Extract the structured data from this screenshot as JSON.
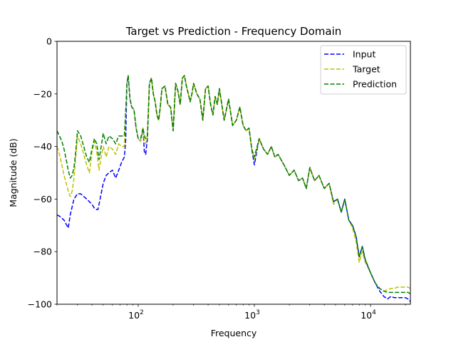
{
  "chart_data": {
    "type": "line",
    "title": "Target vs Prediction - Frequency Domain",
    "xlabel": "Frequency",
    "ylabel": "Magnitude (dB)",
    "xscale": "log",
    "xlim": [
      20,
      22050
    ],
    "ylim": [
      -100,
      0
    ],
    "grid": false,
    "legend_position": "top-right",
    "x_ticks": [
      {
        "value": 100,
        "label": "10",
        "exp": "2"
      },
      {
        "value": 1000,
        "label": "10",
        "exp": "3"
      },
      {
        "value": 10000,
        "label": "10",
        "exp": "4"
      }
    ],
    "y_ticks": [
      {
        "value": 0,
        "label": "0"
      },
      {
        "value": -20,
        "label": "−20"
      },
      {
        "value": -40,
        "label": "−40"
      },
      {
        "value": -60,
        "label": "−60"
      },
      {
        "value": -80,
        "label": "−80"
      },
      {
        "value": -100,
        "label": "−100"
      }
    ],
    "series": [
      {
        "name": "Input",
        "color": "#0000ff",
        "style": "dashed",
        "x": [
          20,
          21,
          23,
          25,
          26,
          28,
          30,
          32,
          34,
          36,
          38,
          40,
          42,
          44,
          45,
          47,
          50,
          53,
          56,
          60,
          64,
          68,
          72,
          76,
          78,
          80,
          82,
          85,
          88,
          92,
          96,
          100,
          105,
          110,
          113,
          116,
          120,
          125,
          130,
          135,
          140,
          145,
          150,
          155,
          160,
          170,
          180,
          190,
          200,
          210,
          220,
          230,
          240,
          250,
          260,
          270,
          280,
          290,
          300,
          320,
          340,
          360,
          380,
          400,
          420,
          440,
          460,
          480,
          500,
          550,
          600,
          650,
          700,
          750,
          800,
          850,
          900,
          950,
          1000,
          1100,
          1200,
          1300,
          1400,
          1500,
          1600,
          1800,
          2000,
          2200,
          2400,
          2600,
          2800,
          3000,
          3300,
          3600,
          4000,
          4400,
          4800,
          5200,
          5600,
          6000,
          6500,
          7000,
          7500,
          8000,
          8500,
          9000,
          10000,
          11000,
          12000,
          13000,
          14000,
          15000,
          16000,
          17000,
          18000,
          19000,
          20000,
          21000,
          22050
        ],
        "y": [
          -66,
          -66.5,
          -68,
          -71,
          -66,
          -60,
          -58,
          -58,
          -59,
          -60,
          -61,
          -62,
          -63.5,
          -64,
          -64,
          -60,
          -54,
          -51,
          -50,
          -49,
          -52,
          -49,
          -46,
          -44,
          -38,
          -16,
          -13,
          -22,
          -25,
          -26,
          -33,
          -37,
          -38,
          -33,
          -42,
          -43,
          -37,
          -16,
          -14,
          -20,
          -23,
          -28,
          -30,
          -25,
          -18,
          -17,
          -24,
          -25,
          -34,
          -16,
          -19,
          -24,
          -14,
          -13,
          -17,
          -20,
          -23,
          -20,
          -16,
          -20,
          -22,
          -30,
          -18,
          -17,
          -24,
          -28,
          -21,
          -24,
          -18,
          -30,
          -22,
          -32,
          -30,
          -25,
          -32,
          -34,
          -33,
          -41,
          -47,
          -37,
          -41,
          -43,
          -40,
          -44,
          -43,
          -47,
          -51,
          -49,
          -53,
          -52,
          -56,
          -48,
          -53,
          -51,
          -56,
          -54,
          -61,
          -60,
          -65,
          -60,
          -68,
          -70,
          -74,
          -82,
          -78,
          -83,
          -88,
          -92,
          -95,
          -97,
          -98,
          -97,
          -97.5,
          -97.5,
          -97.5,
          -97.5,
          -97.5,
          -98,
          -99
        ]
      },
      {
        "name": "Target",
        "color": "#bfbf00",
        "style": "dashed",
        "x": [
          20,
          21,
          22,
          23,
          24,
          25,
          26,
          27,
          28,
          29,
          30,
          32,
          34,
          36,
          38,
          40,
          42,
          44,
          46,
          48,
          50,
          53,
          56,
          60,
          64,
          68,
          72,
          76,
          78,
          80,
          82,
          85,
          88,
          92,
          96,
          100,
          105,
          110,
          113,
          116,
          120,
          125,
          130,
          135,
          140,
          145,
          150,
          155,
          160,
          170,
          180,
          190,
          200,
          210,
          220,
          230,
          240,
          250,
          260,
          270,
          280,
          290,
          300,
          320,
          340,
          360,
          380,
          400,
          420,
          440,
          460,
          480,
          500,
          550,
          600,
          650,
          700,
          750,
          800,
          850,
          900,
          950,
          1000,
          1100,
          1200,
          1300,
          1400,
          1500,
          1600,
          1800,
          2000,
          2200,
          2400,
          2600,
          2800,
          3000,
          3300,
          3600,
          4000,
          4400,
          4800,
          5200,
          5600,
          6000,
          6500,
          7000,
          7500,
          8000,
          8500,
          9000,
          10000,
          11000,
          12000,
          13000,
          14000,
          15000,
          16000,
          17000,
          18000,
          19000,
          20000,
          21000,
          22050
        ],
        "y": [
          -40,
          -43,
          -47,
          -51,
          -54,
          -57,
          -59,
          -57,
          -52,
          -44,
          -36,
          -39,
          -43,
          -47,
          -50,
          -42,
          -38,
          -42,
          -49,
          -44,
          -40,
          -44,
          -40,
          -41,
          -43,
          -39,
          -40,
          -40,
          -28,
          -16,
          -13,
          -22,
          -25,
          -26,
          -33,
          -37,
          -38,
          -33,
          -38,
          -39,
          -36,
          -16,
          -14,
          -20,
          -23,
          -28,
          -30,
          -25,
          -18,
          -17,
          -24,
          -25,
          -34,
          -16,
          -19,
          -24,
          -14,
          -13,
          -17,
          -20,
          -23,
          -20,
          -16,
          -20,
          -22,
          -30,
          -18,
          -17,
          -24,
          -28,
          -21,
          -24,
          -18,
          -30,
          -22,
          -32,
          -30,
          -25,
          -32,
          -34,
          -33,
          -41,
          -45,
          -37,
          -41,
          -43,
          -40,
          -44,
          -43,
          -47,
          -51,
          -49,
          -53,
          -52,
          -56,
          -48,
          -53,
          -51,
          -56,
          -54,
          -62,
          -60,
          -65,
          -60,
          -68,
          -71,
          -76,
          -84,
          -80,
          -84,
          -88,
          -92,
          -94,
          -95,
          -94.5,
          -94,
          -94,
          -93.5,
          -93.5,
          -93.5,
          -93.5,
          -93.5,
          -94
        ]
      },
      {
        "name": "Prediction",
        "color": "#008000",
        "style": "dashed",
        "x": [
          20,
          21,
          22,
          23,
          24,
          25,
          26,
          27,
          28,
          29,
          30,
          32,
          34,
          36,
          38,
          40,
          42,
          44,
          46,
          48,
          50,
          53,
          56,
          60,
          64,
          68,
          72,
          76,
          78,
          80,
          82,
          85,
          88,
          92,
          96,
          100,
          105,
          110,
          113,
          116,
          120,
          125,
          130,
          135,
          140,
          145,
          150,
          155,
          160,
          170,
          180,
          190,
          200,
          210,
          220,
          230,
          240,
          250,
          260,
          270,
          280,
          290,
          300,
          320,
          340,
          360,
          380,
          400,
          420,
          440,
          460,
          480,
          500,
          550,
          600,
          650,
          700,
          750,
          800,
          850,
          900,
          950,
          1000,
          1100,
          1200,
          1300,
          1400,
          1500,
          1600,
          1800,
          2000,
          2200,
          2400,
          2600,
          2800,
          3000,
          3300,
          3600,
          4000,
          4400,
          4800,
          5200,
          5600,
          6000,
          6500,
          7000,
          7500,
          8000,
          8500,
          9000,
          10000,
          11000,
          12000,
          13000,
          14000,
          15000,
          16000,
          17000,
          18000,
          19000,
          20000,
          21000,
          22050
        ],
        "y": [
          -34,
          -36,
          -38,
          -41,
          -45,
          -49,
          -52,
          -51,
          -48,
          -42,
          -34,
          -36,
          -40,
          -44,
          -46,
          -41,
          -37,
          -39,
          -45,
          -40,
          -35,
          -39,
          -36,
          -37,
          -39,
          -36,
          -36,
          -36,
          -27,
          -16,
          -13,
          -22,
          -25,
          -26,
          -33,
          -37,
          -37,
          -33,
          -36,
          -37,
          -36,
          -16,
          -14,
          -20,
          -23,
          -28,
          -30,
          -25,
          -18,
          -17,
          -24,
          -25,
          -34,
          -16,
          -19,
          -24,
          -14,
          -13,
          -17,
          -20,
          -23,
          -20,
          -16,
          -20,
          -22,
          -30,
          -18,
          -17,
          -24,
          -28,
          -21,
          -24,
          -18,
          -30,
          -22,
          -32,
          -30,
          -25,
          -32,
          -34,
          -33,
          -41,
          -44,
          -37,
          -41,
          -43,
          -40,
          -44,
          -43,
          -47,
          -51,
          -49,
          -53,
          -52,
          -56,
          -48,
          -53,
          -51,
          -56,
          -54,
          -61,
          -60,
          -65,
          -60,
          -68,
          -70,
          -74,
          -82,
          -78,
          -83,
          -88,
          -92,
          -94,
          -95,
          -95.5,
          -95.5,
          -95.5,
          -95.5,
          -95.5,
          -95.5,
          -95.5,
          -95.5,
          -96
        ]
      }
    ]
  }
}
